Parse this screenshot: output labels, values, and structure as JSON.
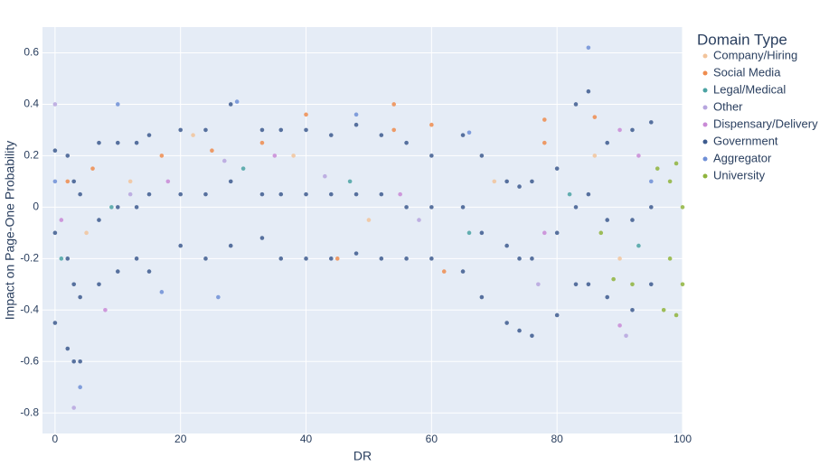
{
  "chart_data": {
    "type": "scatter",
    "x_label": "DR",
    "y_label": "Impact on Page-One Probability",
    "legend_title": "Domain Type",
    "legend_position": "right",
    "xlim": [
      -2,
      100
    ],
    "ylim": [
      -0.88,
      0.7
    ],
    "xticks": [
      0,
      20,
      40,
      60,
      80,
      100
    ],
    "yticks": [
      0.6,
      0.4,
      0.2,
      0,
      -0.2,
      -0.4,
      -0.6,
      -0.8
    ],
    "grid": true,
    "series": [
      {
        "name": "Company/Hiring",
        "color": "#f2c49b",
        "x": [
          5,
          12,
          22,
          38,
          50,
          70,
          86,
          90
        ],
        "y": [
          -0.1,
          0.1,
          0.28,
          0.2,
          -0.05,
          0.1,
          0.2,
          -0.2
        ]
      },
      {
        "name": "Social Media",
        "color": "#ef8c4e",
        "x": [
          2,
          6,
          17,
          25,
          33,
          40,
          54,
          54,
          60,
          78,
          78,
          86,
          62,
          45
        ],
        "y": [
          0.1,
          0.15,
          0.2,
          0.22,
          0.25,
          0.36,
          0.4,
          0.3,
          0.32,
          0.34,
          0.25,
          0.35,
          -0.25,
          -0.2
        ]
      },
      {
        "name": "Legal/Medical",
        "color": "#4ba3a3",
        "x": [
          1,
          9,
          30,
          47,
          66,
          82,
          93
        ],
        "y": [
          -0.2,
          0,
          0.15,
          0.1,
          -0.1,
          0.05,
          -0.15
        ]
      },
      {
        "name": "Other",
        "color": "#b7a5de",
        "x": [
          0,
          3,
          12,
          27,
          43,
          58,
          77,
          91
        ],
        "y": [
          0.4,
          -0.78,
          0.05,
          0.18,
          0.12,
          -0.05,
          -0.3,
          -0.5
        ]
      },
      {
        "name": "Dispensary/Delivery",
        "color": "#c98ad6",
        "x": [
          1,
          8,
          18,
          35,
          55,
          78,
          90,
          93,
          90
        ],
        "y": [
          -0.05,
          -0.4,
          0.1,
          0.2,
          0.05,
          -0.1,
          -0.46,
          0.2,
          0.3
        ]
      },
      {
        "name": "Government",
        "color": "#3d5b8e",
        "x": [
          0,
          0,
          0,
          2,
          2,
          2,
          3,
          3,
          3,
          4,
          4,
          4,
          7,
          7,
          7,
          10,
          10,
          10,
          13,
          13,
          13,
          15,
          15,
          15,
          20,
          20,
          20,
          24,
          24,
          24,
          28,
          28,
          28,
          33,
          33,
          33,
          36,
          36,
          36,
          40,
          40,
          40,
          44,
          44,
          44,
          48,
          48,
          48,
          52,
          52,
          52,
          56,
          56,
          56,
          60,
          60,
          60,
          65,
          65,
          65,
          68,
          68,
          68,
          72,
          72,
          72,
          74,
          74,
          74,
          76,
          76,
          76,
          80,
          80,
          80,
          83,
          83,
          83,
          85,
          85,
          85,
          88,
          88,
          88,
          92,
          92,
          92,
          95,
          95,
          95
        ],
        "y": [
          0.22,
          -0.1,
          -0.45,
          0.2,
          -0.2,
          -0.55,
          0.1,
          -0.3,
          -0.6,
          0.05,
          -0.35,
          -0.6,
          0.25,
          -0.05,
          -0.3,
          0.25,
          0,
          -0.25,
          0.25,
          0,
          -0.2,
          0.28,
          0.05,
          -0.25,
          0.3,
          0.05,
          -0.15,
          0.3,
          0.05,
          -0.2,
          0.4,
          0.1,
          -0.15,
          0.3,
          0.05,
          -0.12,
          0.3,
          0.05,
          -0.2,
          0.3,
          0.05,
          -0.2,
          0.28,
          0.05,
          -0.2,
          0.32,
          0.05,
          -0.18,
          0.28,
          0.05,
          -0.2,
          0.25,
          0,
          -0.2,
          0.2,
          0,
          -0.2,
          0.28,
          0,
          -0.25,
          0.2,
          -0.1,
          -0.35,
          0.1,
          -0.15,
          -0.45,
          0.08,
          -0.2,
          -0.48,
          0.1,
          -0.2,
          -0.5,
          0.15,
          -0.1,
          -0.42,
          0.4,
          0,
          -0.3,
          0.45,
          0.05,
          -0.3,
          0.25,
          -0.05,
          -0.35,
          0.3,
          -0.05,
          -0.4,
          0.33,
          0,
          -0.3
        ]
      },
      {
        "name": "Aggregator",
        "color": "#6f8fd6",
        "x": [
          0,
          4,
          10,
          17,
          26,
          29,
          48,
          66,
          85,
          95
        ],
        "y": [
          0.1,
          -0.7,
          0.4,
          -0.33,
          -0.35,
          0.41,
          0.36,
          0.29,
          0.62,
          0.1
        ]
      },
      {
        "name": "University",
        "color": "#8fb43c",
        "x": [
          92,
          96,
          97,
          98,
          98,
          99,
          99,
          100,
          100,
          89,
          87
        ],
        "y": [
          -0.3,
          0.15,
          -0.4,
          0.1,
          -0.2,
          0.17,
          -0.42,
          0,
          -0.3,
          -0.28,
          -0.1
        ]
      }
    ]
  }
}
